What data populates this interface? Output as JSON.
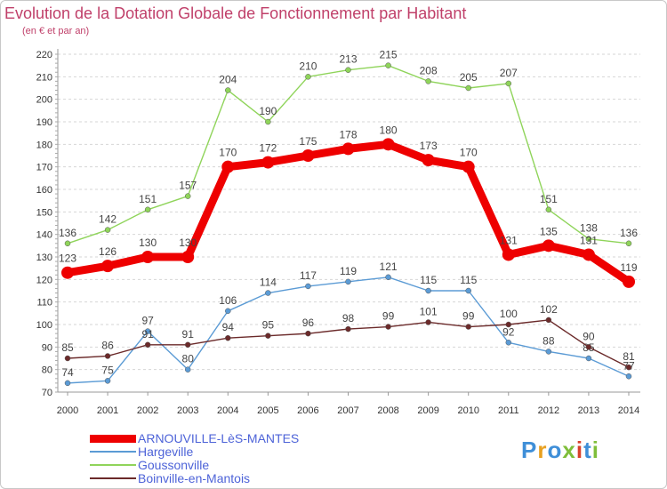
{
  "header": {
    "title": "Evolution de la Dotation Globale de Fonctionnement par Habitant",
    "subtitle": "(en € et par an)"
  },
  "brand": "Proxiti",
  "chart_data": {
    "type": "line",
    "title": "Evolution de la Dotation Globale de Fonctionnement par Habitant",
    "subtitle": "(en € et par an)",
    "x": [
      "2000",
      "2001",
      "2002",
      "2003",
      "2004",
      "2005",
      "2006",
      "2007",
      "2008",
      "2009",
      "2010",
      "2011",
      "2012",
      "2013",
      "2014"
    ],
    "ylim": [
      70,
      220
    ],
    "yticks": [
      70,
      80,
      90,
      100,
      110,
      120,
      130,
      140,
      150,
      160,
      170,
      180,
      190,
      200,
      210,
      220
    ],
    "grid": "horizontal dashed",
    "legend_position": "bottom",
    "series": [
      {
        "name": "ARNOUVILLE-LèS-MANTES",
        "color": "#ee0000",
        "values": [
          123,
          126,
          130,
          130,
          170,
          172,
          175,
          178,
          180,
          173,
          170,
          131,
          135,
          131,
          119
        ]
      },
      {
        "name": "Hargeville",
        "color": "#5b9bd5",
        "values": [
          74,
          75,
          97,
          80,
          106,
          114,
          117,
          119,
          121,
          115,
          115,
          92,
          88,
          85,
          77
        ]
      },
      {
        "name": "Goussonville",
        "color": "#8fd45a",
        "values": [
          136,
          142,
          151,
          157,
          204,
          190,
          210,
          213,
          215,
          208,
          205,
          207,
          151,
          138,
          136
        ]
      },
      {
        "name": "Boinville-en-Mantois",
        "color": "#6b2a2a",
        "values": [
          85,
          86,
          91,
          91,
          94,
          95,
          96,
          98,
          99,
          101,
          99,
          100,
          102,
          90,
          81
        ]
      }
    ]
  }
}
